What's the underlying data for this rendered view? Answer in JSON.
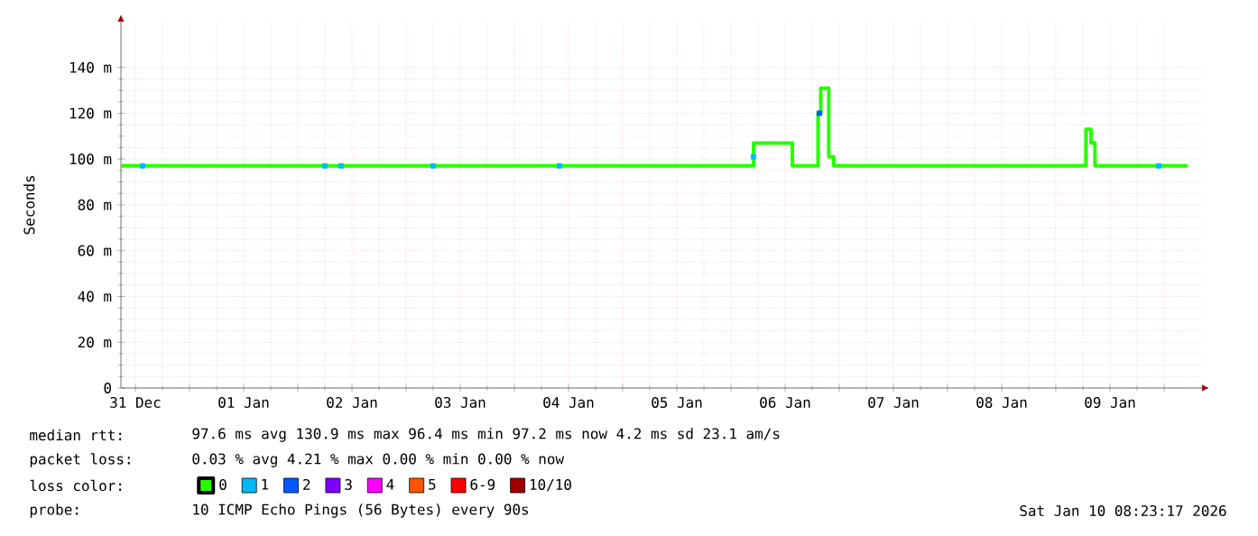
{
  "chart_data": {
    "type": "step",
    "ylabel": "Seconds",
    "legend_title": "loss color:",
    "legend": "bottom",
    "grid": true,
    "xlim": [
      "2025-12-31T08:48",
      "2026-01-10T08:24"
    ],
    "xticks": [
      {
        "value": "2025-12-31T12:00",
        "label": "31 Dec"
      },
      {
        "value": "2026-01-01T00:00",
        "label": null
      },
      {
        "value": "2026-01-01T12:00",
        "label": "01 Jan"
      },
      {
        "value": "2026-01-02T00:00",
        "label": null
      },
      {
        "value": "2026-01-02T12:00",
        "label": "02 Jan"
      },
      {
        "value": "2026-01-03T00:00",
        "label": null
      },
      {
        "value": "2026-01-03T12:00",
        "label": "03 Jan"
      },
      {
        "value": "2026-01-04T00:00",
        "label": null
      },
      {
        "value": "2026-01-04T12:00",
        "label": "04 Jan"
      },
      {
        "value": "2026-01-05T00:00",
        "label": null
      },
      {
        "value": "2026-01-05T12:00",
        "label": "05 Jan"
      },
      {
        "value": "2026-01-06T00:00",
        "label": null
      },
      {
        "value": "2026-01-06T12:00",
        "label": "06 Jan"
      },
      {
        "value": "2026-01-07T00:00",
        "label": null
      },
      {
        "value": "2026-01-07T12:00",
        "label": "07 Jan"
      },
      {
        "value": "2026-01-08T00:00",
        "label": null
      },
      {
        "value": "2026-01-08T12:00",
        "label": "08 Jan"
      },
      {
        "value": "2026-01-09T00:00",
        "label": null
      },
      {
        "value": "2026-01-09T12:00",
        "label": "09 Jan"
      },
      {
        "value": "2026-01-10T00:00",
        "label": null
      }
    ],
    "ylim": [
      0,
      160
    ],
    "yticks": [
      0,
      {
        "value": 20,
        "label": "20 m"
      },
      {
        "value": 40,
        "label": "40 m"
      },
      {
        "value": 60,
        "label": "60 m"
      },
      {
        "value": 80,
        "label": "80 m"
      },
      {
        "value": 100,
        "label": "100 m"
      },
      {
        "value": 120,
        "label": "120 m"
      },
      {
        "value": 140,
        "label": "140 m"
      }
    ],
    "series": [
      {
        "name": "0",
        "color": "#26ff00",
        "x": [
          "2025-12-31T08:48",
          "2026-01-06T05:00",
          "2026-01-06T13:36",
          "2026-01-06T19:18",
          "2026-01-06T19:54",
          "2026-01-06T21:40",
          "2026-01-06T22:48",
          "2026-01-09T06:40",
          "2026-01-09T07:48",
          "2026-01-09T08:40",
          "2026-01-10T05:12"
        ],
        "values": [
          97,
          107,
          97,
          120,
          130.9,
          101,
          97,
          113,
          107,
          97,
          97
        ]
      },
      {
        "name": "1",
        "color": "#00b8ff",
        "type": "scatter",
        "marker": "square",
        "x": [
          "2025-12-31T13:36",
          "2026-01-02T06:00",
          "2026-01-02T09:36",
          "2026-01-03T06:00",
          "2026-01-04T10:00",
          "2026-01-06T05:00",
          "2026-01-09T22:48"
        ],
        "values": [
          97,
          97,
          97,
          97,
          97,
          101,
          97
        ]
      },
      {
        "name": "2",
        "color": "#0059ff",
        "type": "scatter",
        "marker": "square",
        "x": [
          "2026-01-06T19:36"
        ],
        "values": [
          120
        ]
      },
      {
        "name": "3",
        "color": "#7e00ff",
        "type": "scatter",
        "marker": "square"
      },
      {
        "name": "4",
        "color": "#ff00fe",
        "type": "scatter",
        "marker": "square"
      },
      {
        "name": "5",
        "color": "#ff5500",
        "type": "scatter",
        "marker": "square"
      },
      {
        "name": "6-9",
        "color": "#ff0000",
        "type": "scatter",
        "marker": "square"
      },
      {
        "name": "10/10",
        "color": "#a10000",
        "type": "scatter",
        "marker": "square"
      }
    ],
    "annotations": [
      "median rtt:",
      "97.6 ms avg  130.9 ms max  96.4 ms min  97.2 ms now  4.2 ms sd  23.1   am/s",
      "packet loss:",
      "0.03 % avg  4.21 % max  0.00 % min  0.00 % now",
      "probe:",
      "10 ICMP Echo Pings (56 Bytes) every 90s",
      "Sat Jan 10 08:23:17 2026"
    ]
  }
}
